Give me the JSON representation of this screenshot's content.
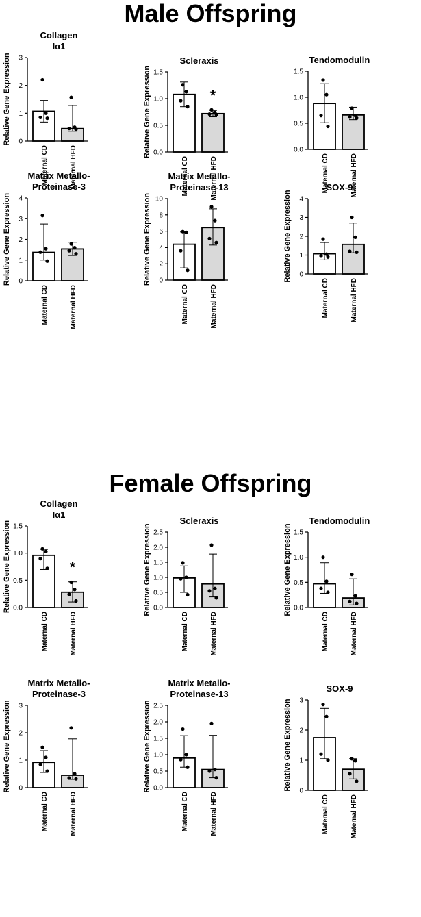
{
  "sections": [
    {
      "title": "Male Offspring"
    },
    {
      "title": "Female Offspring"
    }
  ],
  "colors": {
    "cd_fill": "#ffffff",
    "hfd_fill": "#d9d9d9",
    "ink": "#000000"
  },
  "chart_data": [
    {
      "type": "bar",
      "section": "Male Offspring",
      "title": [
        "Collagen",
        "Iα1"
      ],
      "ylabel": "Relative Gene Expression",
      "categories": [
        "Maternal CD",
        "Maternal HFD"
      ],
      "values": [
        1.07,
        0.45
      ],
      "error_low": [
        0.68,
        0.35
      ],
      "error_high": [
        1.46,
        1.28
      ],
      "points": [
        [
          2.2,
          1.0,
          0.85,
          0.82
        ],
        [
          1.57,
          0.5,
          0.45,
          0.42
        ]
      ],
      "ylim": [
        0,
        3
      ],
      "yticks": [
        "0",
        "1",
        "2",
        "3"
      ],
      "significance": ""
    },
    {
      "type": "bar",
      "section": "Male Offspring",
      "title": [
        "Scleraxis"
      ],
      "ylabel": "Relative Gene Expression",
      "categories": [
        "Maternal CD",
        "Maternal HFD"
      ],
      "values": [
        1.08,
        0.72
      ],
      "error_low": [
        0.85,
        0.66
      ],
      "error_high": [
        1.31,
        0.78
      ],
      "points": [
        [
          1.26,
          1.13,
          0.96,
          0.85
        ],
        [
          0.79,
          0.74,
          0.71,
          0.7
        ]
      ],
      "ylim": [
        0,
        1.5
      ],
      "yticks": [
        "0.0",
        "0.5",
        "1.0",
        "1.5"
      ],
      "significance": "*"
    },
    {
      "type": "bar",
      "section": "Male Offspring",
      "title": [
        "Tendomodulin"
      ],
      "ylabel": "",
      "categories": [
        "Maternal CD",
        "Maternal HFD"
      ],
      "values": [
        0.88,
        0.66
      ],
      "error_low": [
        0.51,
        0.57
      ],
      "error_high": [
        1.26,
        0.81
      ],
      "points": [
        [
          1.33,
          1.05,
          0.65,
          0.44
        ],
        [
          0.79,
          0.65,
          0.62,
          0.6
        ]
      ],
      "ylim": [
        0,
        1.5
      ],
      "yticks": [
        "0.0",
        "0.5",
        "1.0",
        "1.5"
      ],
      "significance": ""
    },
    {
      "type": "bar",
      "section": "Male Offspring",
      "title": [
        "Matrix Metallo-",
        "Proteinase-3"
      ],
      "ylabel": "Relative Gene Expression",
      "categories": [
        "Maternal CD",
        "Maternal HFD"
      ],
      "values": [
        1.37,
        1.54
      ],
      "error_low": [
        1.0,
        1.22
      ],
      "error_high": [
        2.74,
        1.86
      ],
      "points": [
        [
          3.15,
          1.55,
          1.38,
          0.95
        ],
        [
          1.78,
          1.6,
          1.45,
          1.3
        ]
      ],
      "ylim": [
        0,
        4
      ],
      "yticks": [
        "0",
        "1",
        "2",
        "3",
        "4"
      ],
      "significance": ""
    },
    {
      "type": "bar",
      "section": "Male Offspring",
      "title": [
        "Matrix Metallo-",
        "Proteinase-13"
      ],
      "ylabel": "Relative Gene Expression",
      "categories": [
        "Maternal CD",
        "Maternal HFD"
      ],
      "values": [
        4.4,
        6.45
      ],
      "error_low": [
        1.5,
        4.3
      ],
      "error_high": [
        5.9,
        8.75
      ],
      "points": [
        [
          5.95,
          5.85,
          3.6,
          1.2
        ],
        [
          9.0,
          7.3,
          5.1,
          4.6
        ]
      ],
      "ylim": [
        0,
        10
      ],
      "yticks": [
        "0",
        "2",
        "4",
        "6",
        "8",
        "10"
      ],
      "significance": ""
    },
    {
      "type": "bar",
      "section": "Male Offspring",
      "title": [
        "SOX-9"
      ],
      "ylabel": "Relative Gene Expression",
      "categories": [
        "Maternal CD",
        "Maternal HFD"
      ],
      "values": [
        1.07,
        1.57
      ],
      "error_low": [
        0.75,
        1.12
      ],
      "error_high": [
        1.67,
        2.7
      ],
      "points": [
        [
          1.85,
          1.05,
          0.95,
          0.9
        ],
        [
          3.0,
          1.95,
          1.2,
          1.15
        ]
      ],
      "ylim": [
        0,
        4
      ],
      "yticks": [
        "0",
        "1",
        "2",
        "3",
        "4"
      ],
      "significance": ""
    },
    {
      "type": "bar",
      "section": "Female Offspring",
      "title": [
        "Collagen",
        "Iα1"
      ],
      "ylabel": "Relative Gene Expression",
      "categories": [
        "Maternal CD",
        "Maternal HFD"
      ],
      "values": [
        0.96,
        0.28
      ],
      "error_low": [
        0.7,
        0.1
      ],
      "error_high": [
        1.07,
        0.47
      ],
      "points": [
        [
          1.08,
          1.03,
          0.9,
          0.72
        ],
        [
          0.46,
          0.33,
          0.24,
          0.12
        ]
      ],
      "ylim": [
        0,
        1.5
      ],
      "yticks": [
        "0.0",
        "0.5",
        "1.0",
        "1.5"
      ],
      "significance": "*"
    },
    {
      "type": "bar",
      "section": "Female Offspring",
      "title": [
        "Scleraxis"
      ],
      "ylabel": "Relative Gene Expression",
      "categories": [
        "Maternal CD",
        "Maternal HFD"
      ],
      "values": [
        0.98,
        0.78
      ],
      "error_low": [
        0.5,
        0.35
      ],
      "error_high": [
        1.38,
        1.77
      ],
      "points": [
        [
          1.48,
          1.0,
          0.95,
          0.42
        ],
        [
          2.07,
          0.63,
          0.55,
          0.32
        ]
      ],
      "ylim": [
        0,
        2.5
      ],
      "yticks": [
        "0.0",
        "0.5",
        "1.0",
        "1.5",
        "2.0",
        "2.5"
      ],
      "significance": ""
    },
    {
      "type": "bar",
      "section": "Female Offspring",
      "title": [
        "Tendomodulin"
      ],
      "ylabel": "Relative Gene Expression",
      "categories": [
        "Maternal CD",
        "Maternal HFD"
      ],
      "values": [
        0.47,
        0.19
      ],
      "error_low": [
        0.28,
        0.05
      ],
      "error_high": [
        0.89,
        0.57
      ],
      "points": [
        [
          1.0,
          0.52,
          0.38,
          0.3
        ],
        [
          0.66,
          0.23,
          0.12,
          0.08
        ]
      ],
      "ylim": [
        0,
        1.5
      ],
      "yticks": [
        "0.0",
        "0.5",
        "1.0",
        "1.5"
      ],
      "significance": ""
    },
    {
      "type": "bar",
      "section": "Female Offspring",
      "title": [
        "Matrix Metallo-",
        "Proteinase-3"
      ],
      "ylabel": "Relative Gene Expression",
      "categories": [
        "Maternal CD",
        "Maternal HFD"
      ],
      "values": [
        0.92,
        0.45
      ],
      "error_low": [
        0.55,
        0.3
      ],
      "error_high": [
        1.35,
        1.78
      ],
      "points": [
        [
          1.47,
          1.1,
          0.85,
          0.6
        ],
        [
          2.18,
          0.5,
          0.35,
          0.32
        ]
      ],
      "ylim": [
        0,
        3
      ],
      "yticks": [
        "0",
        "1",
        "2",
        "3"
      ],
      "significance": ""
    },
    {
      "type": "bar",
      "section": "Female Offspring",
      "title": [
        "Matrix Metallo-",
        "Proteinase-13"
      ],
      "ylabel": "Relative Gene Expression",
      "categories": [
        "Maternal CD",
        "Maternal HFD"
      ],
      "values": [
        0.9,
        0.55
      ],
      "error_low": [
        0.62,
        0.3
      ],
      "error_high": [
        1.58,
        1.59
      ],
      "points": [
        [
          1.78,
          1.0,
          0.85,
          0.62
        ],
        [
          1.95,
          0.55,
          0.5,
          0.3
        ]
      ],
      "ylim": [
        0,
        2.5
      ],
      "yticks": [
        "0.0",
        "0.5",
        "1.0",
        "1.5",
        "2.0",
        "2.5"
      ],
      "significance": ""
    },
    {
      "type": "bar",
      "section": "Female Offspring",
      "title": [
        "SOX-9"
      ],
      "ylabel": "Relative Gene Expression",
      "categories": [
        "Maternal CD",
        "Maternal HFD"
      ],
      "values": [
        1.75,
        0.7
      ],
      "error_low": [
        1.05,
        0.38
      ],
      "error_high": [
        2.72,
        1.05
      ],
      "points": [
        [
          2.85,
          2.45,
          1.2,
          1.0
        ],
        [
          1.05,
          0.98,
          0.55,
          0.3
        ]
      ],
      "ylim": [
        0,
        3
      ],
      "yticks": [
        "0",
        "1",
        "2",
        "3"
      ],
      "significance": ""
    }
  ]
}
